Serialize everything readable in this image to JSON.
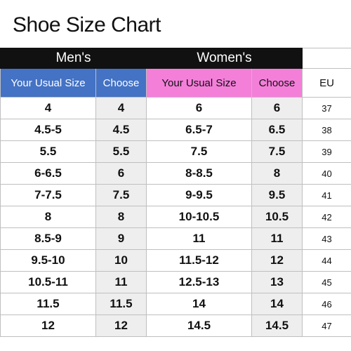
{
  "title": "Shoe Size Chart",
  "groups": {
    "men": "Men's",
    "women": "Women's"
  },
  "headers": {
    "men_usual": "Your Usual Size",
    "men_choose": "Choose",
    "women_usual": "Your Usual Size",
    "women_choose": "Choose",
    "eu": "EU"
  },
  "colors": {
    "group_header_bg": "#111111",
    "men_header_bg": "#4472c4",
    "women_header_bg": "#f47fd9",
    "choose_cell_bg": "#eeeeee"
  },
  "rows": [
    {
      "men_usual": "4",
      "men_choose": "4",
      "women_usual": "6",
      "women_choose": "6",
      "eu": "37"
    },
    {
      "men_usual": "4.5-5",
      "men_choose": "4.5",
      "women_usual": "6.5-7",
      "women_choose": "6.5",
      "eu": "38"
    },
    {
      "men_usual": "5.5",
      "men_choose": "5.5",
      "women_usual": "7.5",
      "women_choose": "7.5",
      "eu": "39"
    },
    {
      "men_usual": "6-6.5",
      "men_choose": "6",
      "women_usual": "8-8.5",
      "women_choose": "8",
      "eu": "40"
    },
    {
      "men_usual": "7-7.5",
      "men_choose": "7.5",
      "women_usual": "9-9.5",
      "women_choose": "9.5",
      "eu": "41"
    },
    {
      "men_usual": "8",
      "men_choose": "8",
      "women_usual": "10-10.5",
      "women_choose": "10.5",
      "eu": "42"
    },
    {
      "men_usual": "8.5-9",
      "men_choose": "9",
      "women_usual": "11",
      "women_choose": "11",
      "eu": "43"
    },
    {
      "men_usual": "9.5-10",
      "men_choose": "10",
      "women_usual": "11.5-12",
      "women_choose": "12",
      "eu": "44"
    },
    {
      "men_usual": "10.5-11",
      "men_choose": "11",
      "women_usual": "12.5-13",
      "women_choose": "13",
      "eu": "45"
    },
    {
      "men_usual": "11.5",
      "men_choose": "11.5",
      "women_usual": "14",
      "women_choose": "14",
      "eu": "46"
    },
    {
      "men_usual": "12",
      "men_choose": "12",
      "women_usual": "14.5",
      "women_choose": "14.5",
      "eu": "47"
    }
  ]
}
